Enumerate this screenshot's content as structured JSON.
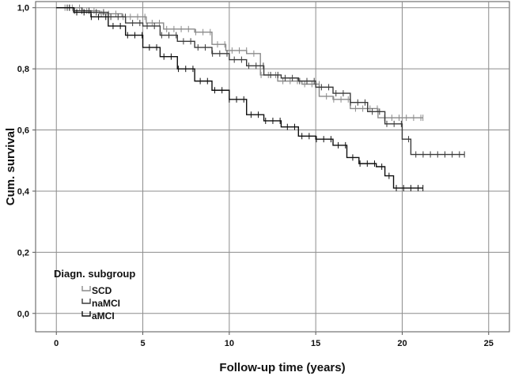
{
  "chart_data": {
    "type": "line",
    "subtype": "kaplan-meier step curves with censor marks",
    "xlabel": "Follow-up time (years)",
    "ylabel": "Cum. survival",
    "xlim": [
      -1.2,
      26.2
    ],
    "ylim": [
      -0.06,
      1.02
    ],
    "x_ticks": [
      0,
      5,
      10,
      15,
      20,
      25
    ],
    "x_tick_labels": [
      "0",
      "5",
      "10",
      "15",
      "20",
      "25"
    ],
    "y_ticks": [
      0.0,
      0.2,
      0.4,
      0.6,
      0.8,
      1.0
    ],
    "y_tick_labels": [
      "0,0",
      "0,2",
      "0,4",
      "0,6",
      "0,8",
      "1,0"
    ],
    "grid": true,
    "legend": {
      "title": "Diagn. subgroup",
      "placement": "bottom-left",
      "entries": [
        "SCD",
        "naMCI",
        "aMCI"
      ]
    },
    "series": [
      {
        "name": "SCD",
        "color": "#8a8a8a",
        "x": [
          0,
          1.5,
          2.5,
          3.8,
          5.2,
          6.2,
          8.0,
          9.0,
          9.8,
          11.0,
          11.8,
          12.8,
          14.2,
          15.2,
          16.0,
          17.0,
          18.6,
          21.2
        ],
        "y": [
          1.0,
          0.99,
          0.98,
          0.97,
          0.95,
          0.93,
          0.92,
          0.88,
          0.86,
          0.85,
          0.78,
          0.76,
          0.75,
          0.71,
          0.7,
          0.67,
          0.64,
          0.64
        ]
      },
      {
        "name": "naMCI",
        "color": "#3a3a3a",
        "x": [
          0,
          1.0,
          2.0,
          3.0,
          4.0,
          5.0,
          6.0,
          7.0,
          8.0,
          9.0,
          10.0,
          11.0,
          12.0,
          13.0,
          14.0,
          15.0,
          16.0,
          17.0,
          18.0,
          19.0,
          20.0,
          20.5,
          23.6
        ],
        "y": [
          1.0,
          0.99,
          0.985,
          0.97,
          0.95,
          0.94,
          0.91,
          0.89,
          0.87,
          0.85,
          0.83,
          0.81,
          0.78,
          0.77,
          0.76,
          0.74,
          0.72,
          0.69,
          0.66,
          0.62,
          0.57,
          0.52,
          0.52
        ]
      },
      {
        "name": "aMCI",
        "color": "#0f0f0f",
        "x": [
          0,
          1.0,
          2.0,
          3.0,
          4.0,
          5.0,
          6.0,
          7.0,
          8.0,
          9.0,
          10.0,
          11.0,
          12.0,
          13.0,
          14.0,
          15.0,
          16.0,
          16.8,
          17.5,
          18.5,
          19.0,
          19.5,
          21.2
        ],
        "y": [
          1.0,
          0.985,
          0.97,
          0.94,
          0.91,
          0.87,
          0.84,
          0.8,
          0.76,
          0.73,
          0.7,
          0.65,
          0.63,
          0.61,
          0.58,
          0.57,
          0.55,
          0.51,
          0.49,
          0.48,
          0.45,
          0.41,
          0.41
        ]
      }
    ]
  }
}
